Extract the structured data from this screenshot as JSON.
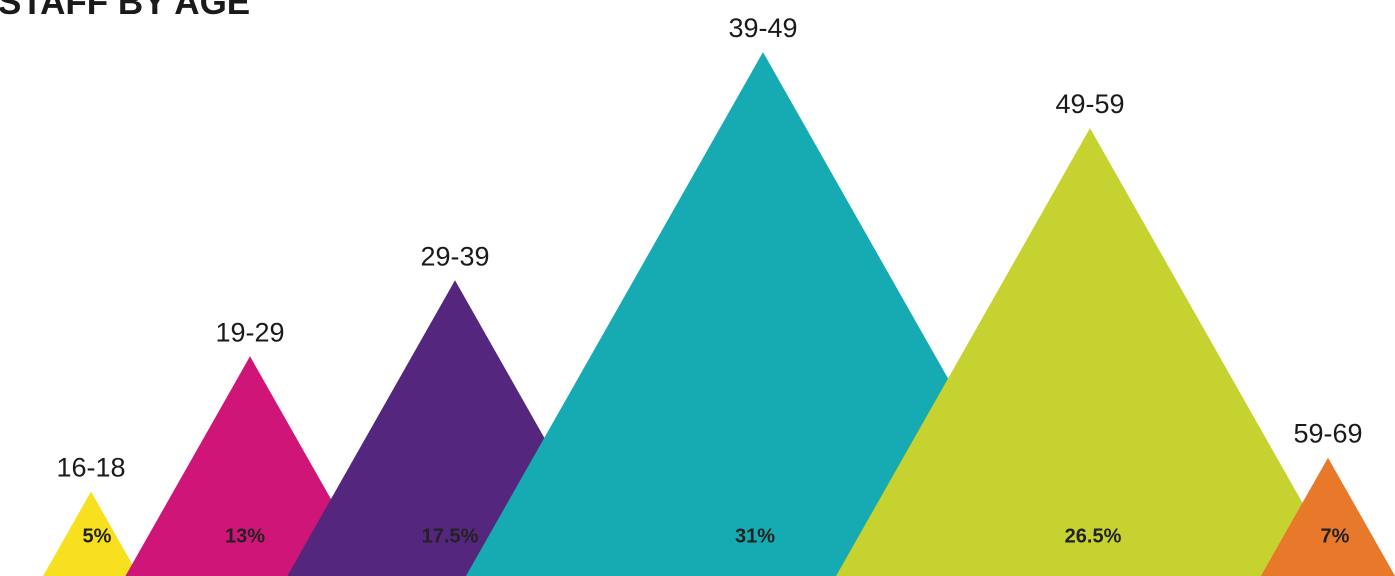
{
  "chart_data": {
    "type": "bar",
    "title": "STAFF BY AGE",
    "categories": [
      "16-18",
      "19-29",
      "29-39",
      "39-49",
      "49-59",
      "59-69"
    ],
    "values": [
      5,
      13,
      17.5,
      31,
      26.5,
      7
    ],
    "value_labels": [
      "5%",
      "13%",
      "17.5%",
      "31%",
      "26.5%",
      "7%"
    ],
    "unit": "%",
    "colors": [
      "#f7e01f",
      "#cf1678",
      "#55267d",
      "#16aab2",
      "#c5d22f",
      "#e8782a"
    ],
    "mark_shape": "triangle",
    "grid": false,
    "legend": "none"
  }
}
